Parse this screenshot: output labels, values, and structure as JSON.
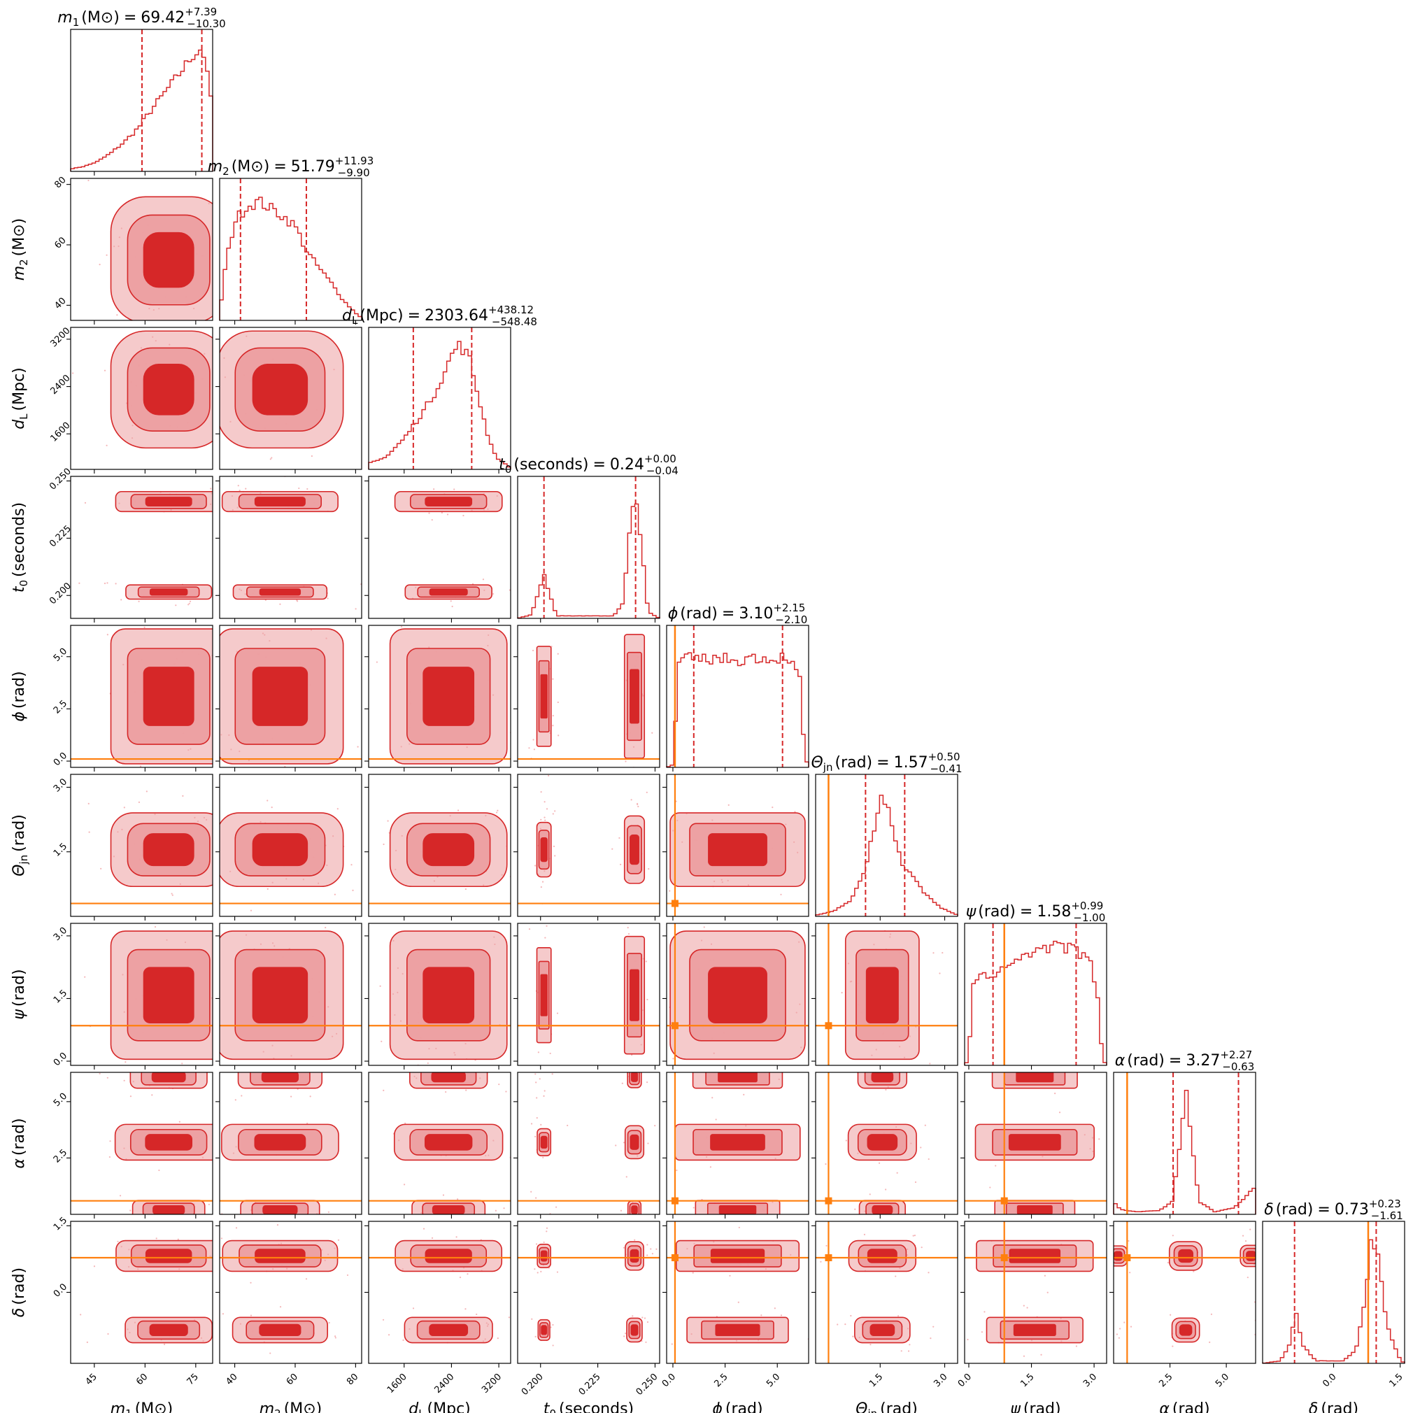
{
  "chart_data": {
    "type": "corner",
    "colors": {
      "posterior": "#d62728",
      "posterior_light": "#ec9ea0",
      "truth": "#ff7f0e"
    },
    "parameters": [
      {
        "key": "m1",
        "sym": "m",
        "sub": "1",
        "unit": "(M⊙)",
        "title_value": "69.42",
        "plus": "+7.39",
        "minus": "−10.30",
        "range": [
          38,
          80
        ],
        "ticks": [
          45,
          60,
          75
        ],
        "q16": 59.1,
        "q84": 76.8,
        "truth": null
      },
      {
        "key": "m2",
        "sym": "m",
        "sub": "2",
        "unit": "(M⊙)",
        "title_value": "51.79",
        "plus": "+11.93",
        "minus": "−9.90",
        "range": [
          35,
          82
        ],
        "ticks": [
          40,
          60,
          80
        ],
        "q16": 41.9,
        "q84": 63.7,
        "truth": null
      },
      {
        "key": "dL",
        "sym": "d",
        "sub": "L",
        "unit": "(Mpc)",
        "title_value": "2303.64",
        "plus": "+438.12",
        "minus": "−548.48",
        "range": [
          1000,
          3400
        ],
        "ticks": [
          1600,
          2400,
          3200
        ],
        "q16": 1755,
        "q84": 2742,
        "truth": null
      },
      {
        "key": "t0",
        "sym": "t",
        "sub": "0",
        "unit": "(seconds)",
        "title_value": "0.24",
        "plus": "+0.00",
        "minus": "−0.04",
        "range": [
          0.19,
          0.252
        ],
        "ticks": [
          0.2,
          0.225,
          0.25
        ],
        "q16": 0.2015,
        "q84": 0.2415,
        "truth": null
      },
      {
        "key": "phi",
        "sym": "ϕ",
        "sub": "",
        "unit": "(rad)",
        "title_value": "3.10",
        "plus": "+2.15",
        "minus": "−2.10",
        "range": [
          -0.3,
          6.5
        ],
        "ticks": [
          0.0,
          2.5,
          5.0
        ],
        "q16": 1.0,
        "q84": 5.25,
        "truth": 0.1
      },
      {
        "key": "theta",
        "sym": "Θ",
        "sub": "jn",
        "unit": "(rad)",
        "title_value": "1.57",
        "plus": "+0.50",
        "minus": "−0.41",
        "range": [
          0,
          3.3
        ],
        "ticks": [
          1.5,
          3.0
        ],
        "q16": 1.16,
        "q84": 2.07,
        "truth": 0.3
      },
      {
        "key": "psi",
        "sym": "ψ",
        "sub": "",
        "unit": "(rad)",
        "title_value": "1.58",
        "plus": "+0.99",
        "minus": "−1.00",
        "range": [
          -0.1,
          3.3
        ],
        "ticks": [
          0.0,
          1.5,
          3.0
        ],
        "q16": 0.58,
        "q84": 2.57,
        "truth": 0.85
      },
      {
        "key": "alpha",
        "sym": "α",
        "sub": "",
        "unit": "(rad)",
        "title_value": "3.27",
        "plus": "+2.27",
        "minus": "−0.63",
        "range": [
          0,
          6.3
        ],
        "ticks": [
          2.5,
          5.0
        ],
        "q16": 2.64,
        "q84": 5.54,
        "truth": 0.6
      },
      {
        "key": "delta",
        "sym": "δ",
        "sub": "",
        "unit": "(rad)",
        "title_value": "0.73",
        "plus": "+0.23",
        "minus": "−1.61",
        "range": [
          -1.6,
          1.6
        ],
        "ticks": [
          0.0,
          1.5
        ],
        "q16": -0.88,
        "q84": 0.96,
        "truth": 0.78
      }
    ],
    "tick_labels": {
      "m1": [
        "45",
        "60",
        "75"
      ],
      "m2": [
        "40",
        "60",
        "80"
      ],
      "dL": [
        "1600",
        "2400",
        "3200"
      ],
      "t0": [
        "0.200",
        "0.225",
        "0.250"
      ],
      "phi": [
        "0.0",
        "2.5",
        "5.0"
      ],
      "theta": [
        "1.5",
        "3.0"
      ],
      "psi": [
        "0.0",
        "1.5",
        "3.0"
      ],
      "alpha": [
        "2.5",
        "5.0"
      ],
      "delta": [
        "0.0",
        "1.5"
      ]
    },
    "marginals": {
      "m1": [
        [
          38,
          0.02
        ],
        [
          42,
          0.04
        ],
        [
          46,
          0.08
        ],
        [
          50,
          0.15
        ],
        [
          54,
          0.24
        ],
        [
          58,
          0.35
        ],
        [
          62,
          0.5
        ],
        [
          66,
          0.64
        ],
        [
          70,
          0.78
        ],
        [
          74,
          0.93
        ],
        [
          77,
          1.0
        ],
        [
          79.5,
          0.6
        ],
        [
          80,
          0.02
        ]
      ],
      "m2": [
        [
          35,
          0.05
        ],
        [
          37,
          0.45
        ],
        [
          40,
          0.8
        ],
        [
          44,
          0.92
        ],
        [
          48,
          0.96
        ],
        [
          52,
          0.9
        ],
        [
          56,
          0.84
        ],
        [
          60,
          0.76
        ],
        [
          64,
          0.55
        ],
        [
          68,
          0.42
        ],
        [
          72,
          0.3
        ],
        [
          76,
          0.16
        ],
        [
          80,
          0.06
        ],
        [
          82,
          0.02
        ]
      ],
      "dL": [
        [
          1000,
          0.05
        ],
        [
          1300,
          0.1
        ],
        [
          1600,
          0.25
        ],
        [
          1900,
          0.45
        ],
        [
          2100,
          0.6
        ],
        [
          2300,
          0.8
        ],
        [
          2450,
          0.97
        ],
        [
          2550,
          1.0
        ],
        [
          2700,
          0.9
        ],
        [
          2850,
          0.6
        ],
        [
          3000,
          0.3
        ],
        [
          3150,
          0.1
        ],
        [
          3400,
          0.01
        ]
      ],
      "t0": [
        [
          0.19,
          0.0
        ],
        [
          0.196,
          0.03
        ],
        [
          0.199,
          0.2
        ],
        [
          0.2015,
          0.35
        ],
        [
          0.204,
          0.2
        ],
        [
          0.207,
          0.02
        ],
        [
          0.232,
          0.02
        ],
        [
          0.236,
          0.12
        ],
        [
          0.239,
          0.7
        ],
        [
          0.2415,
          1.0
        ],
        [
          0.244,
          0.6
        ],
        [
          0.247,
          0.05
        ],
        [
          0.252,
          0.0
        ]
      ],
      "phi": [
        [
          -0.3,
          0.0
        ],
        [
          0.0,
          0.02
        ],
        [
          0.3,
          0.85
        ],
        [
          0.8,
          0.88
        ],
        [
          1.5,
          0.87
        ],
        [
          2.3,
          0.88
        ],
        [
          3.1,
          0.86
        ],
        [
          3.9,
          0.89
        ],
        [
          4.7,
          0.87
        ],
        [
          5.5,
          0.9
        ],
        [
          6.1,
          0.7
        ],
        [
          6.3,
          0.1
        ],
        [
          6.5,
          0.0
        ]
      ],
      "theta": [
        [
          0.0,
          0.01
        ],
        [
          0.4,
          0.04
        ],
        [
          0.8,
          0.12
        ],
        [
          1.1,
          0.32
        ],
        [
          1.3,
          0.62
        ],
        [
          1.55,
          1.0
        ],
        [
          1.8,
          0.72
        ],
        [
          2.0,
          0.42
        ],
        [
          2.3,
          0.3
        ],
        [
          2.6,
          0.16
        ],
        [
          2.9,
          0.07
        ],
        [
          3.3,
          0.01
        ]
      ],
      "psi": [
        [
          -0.1,
          0.0
        ],
        [
          0.0,
          0.05
        ],
        [
          0.1,
          0.68
        ],
        [
          0.6,
          0.74
        ],
        [
          1.0,
          0.83
        ],
        [
          1.4,
          0.9
        ],
        [
          1.8,
          0.94
        ],
        [
          2.2,
          0.96
        ],
        [
          2.6,
          0.92
        ],
        [
          2.9,
          0.84
        ],
        [
          3.1,
          0.5
        ],
        [
          3.2,
          0.05
        ],
        [
          3.3,
          0.0
        ]
      ],
      "alpha": [
        [
          0.0,
          0.1
        ],
        [
          0.3,
          0.04
        ],
        [
          1.0,
          0.02
        ],
        [
          2.0,
          0.03
        ],
        [
          2.6,
          0.1
        ],
        [
          2.9,
          0.5
        ],
        [
          3.2,
          1.0
        ],
        [
          3.5,
          0.55
        ],
        [
          3.8,
          0.1
        ],
        [
          4.5,
          0.02
        ],
        [
          5.3,
          0.05
        ],
        [
          5.9,
          0.15
        ],
        [
          6.3,
          0.22
        ]
      ],
      "delta": [
        [
          -1.6,
          0.0
        ],
        [
          -1.2,
          0.02
        ],
        [
          -1.0,
          0.15
        ],
        [
          -0.85,
          0.4
        ],
        [
          -0.7,
          0.15
        ],
        [
          -0.4,
          0.02
        ],
        [
          0.2,
          0.02
        ],
        [
          0.5,
          0.1
        ],
        [
          0.7,
          0.5
        ],
        [
          0.85,
          1.0
        ],
        [
          1.0,
          0.85
        ],
        [
          1.2,
          0.3
        ],
        [
          1.5,
          0.03
        ],
        [
          1.6,
          0.0
        ]
      ]
    },
    "pairs_note": "2D posterior contours (1σ/2σ/3σ) for each pair of parameters",
    "modes": {
      "m1": [
        {
          "mu": 67,
          "sd": 9
        }
      ],
      "m2": [
        {
          "mu": 55,
          "sd": 11
        }
      ],
      "dL": [
        {
          "mu": 2350,
          "sd": 520
        }
      ],
      "t0": [
        {
          "mu": 0.241,
          "sd": 0.0025,
          "w": 0.72
        },
        {
          "mu": 0.2015,
          "sd": 0.0022,
          "w": 0.28
        }
      ],
      "phi": [
        {
          "mu": 3.1,
          "sd": 2.0,
          "flat": true
        }
      ],
      "theta": [
        {
          "mu": 1.55,
          "sd": 0.45
        }
      ],
      "psi": [
        {
          "mu": 1.58,
          "sd": 0.95,
          "flat": true
        }
      ],
      "alpha": [
        {
          "mu": 3.2,
          "sd": 0.45,
          "w": 0.75
        },
        {
          "mu": 6.1,
          "sd": 0.4,
          "w": 0.15
        },
        {
          "mu": 0.2,
          "sd": 0.35,
          "w": 0.1
        }
      ],
      "delta": [
        {
          "mu": 0.82,
          "sd": 0.2,
          "w": 0.7
        },
        {
          "mu": -0.85,
          "sd": 0.2,
          "w": 0.3
        }
      ]
    }
  }
}
